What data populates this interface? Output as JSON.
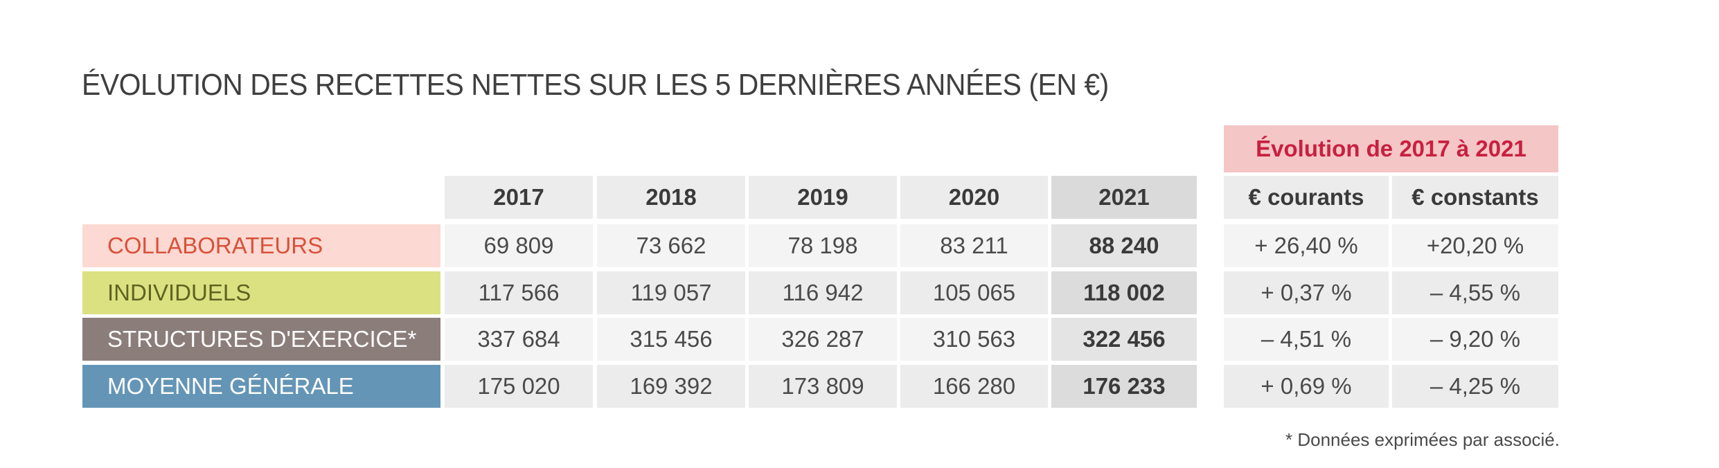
{
  "title": "ÉVOLUTION DES RECETTES NETTES SUR LES 5 DERNIÈRES ANNÉES (EN €)",
  "evolution_header": "Évolution de 2017 à 2021",
  "footnote": "* Données exprimées par associé.",
  "colors": {
    "collaborateurs": "#fcd9d2",
    "collaborateurs_text": "#d9513a",
    "individuels": "#dbe181",
    "individuels_text": "#5f6320",
    "structures": "#8b7d7a",
    "moyenne": "#6495b6",
    "evolution_bg": "#f4c6c6",
    "evolution_text": "#c8203f"
  },
  "chart_data": {
    "type": "table",
    "title": "ÉVOLUTION DES RECETTES NETTES SUR LES 5 DERNIÈRES ANNÉES (EN €)",
    "columns": [
      "2017",
      "2018",
      "2019",
      "2020",
      "2021"
    ],
    "evolution_columns": [
      "€ courants",
      "€ constants"
    ],
    "rows": [
      {
        "label": "COLLABORATEURS",
        "values": [
          "69 809",
          "73 662",
          "78 198",
          "83 211",
          "88 240"
        ],
        "evolution": [
          "+ 26,40 %",
          "+20,20 %"
        ]
      },
      {
        "label": "INDIVIDUELS",
        "values": [
          "117 566",
          "119 057",
          "116 942",
          "105 065",
          "118 002"
        ],
        "evolution": [
          "+ 0,37 %",
          "– 4,55 %"
        ]
      },
      {
        "label": "STRUCTURES D'EXERCICE*",
        "values": [
          "337 684",
          "315 456",
          "326 287",
          "310 563",
          "322 456"
        ],
        "evolution": [
          "– 4,51 %",
          "– 9,20 %"
        ]
      },
      {
        "label": "MOYENNE GÉNÉRALE",
        "values": [
          "175 020",
          "169 392",
          "173 809",
          "166 280",
          "176 233"
        ],
        "evolution": [
          "+ 0,69 %",
          "– 4,25 %"
        ]
      }
    ]
  }
}
